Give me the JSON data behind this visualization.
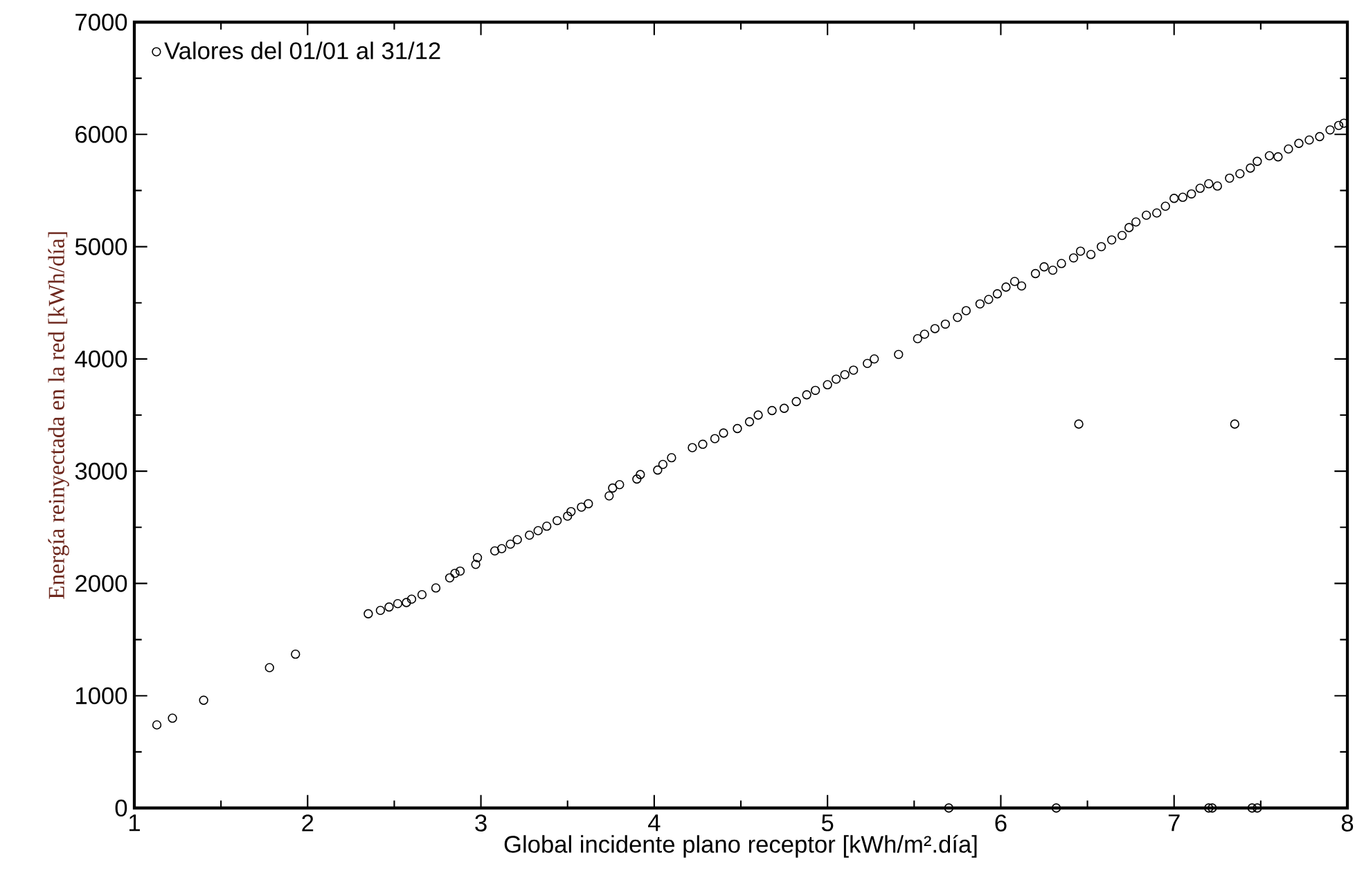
{
  "chart_data": {
    "type": "scatter",
    "xlabel": "Global incidente plano receptor [kWh/m².día]",
    "ylabel": "Energía reinyectada en la red [kWh/día]",
    "xlim": [
      1,
      8
    ],
    "ylim": [
      0,
      7000
    ],
    "xticks": [
      1,
      2,
      3,
      4,
      5,
      6,
      7,
      8
    ],
    "yticks": [
      0,
      1000,
      2000,
      3000,
      4000,
      5000,
      6000,
      7000
    ],
    "grid": false,
    "legend": "top left",
    "marker": "circle",
    "series": [
      {
        "name": "Valores del 01/01 al 31/12",
        "color": "#000000",
        "x": [
          1.13,
          1.22,
          1.4,
          1.78,
          1.93,
          2.35,
          2.42,
          2.47,
          2.52,
          2.57,
          2.6,
          2.66,
          2.74,
          2.82,
          2.85,
          2.88,
          2.97,
          2.98,
          3.08,
          3.12,
          3.17,
          3.21,
          3.28,
          3.33,
          3.38,
          3.44,
          3.5,
          3.52,
          3.58,
          3.62,
          3.74,
          3.76,
          3.8,
          3.9,
          3.92,
          4.02,
          4.05,
          4.1,
          4.22,
          4.28,
          4.35,
          4.4,
          4.48,
          4.55,
          4.6,
          4.68,
          4.75,
          4.82,
          4.88,
          4.93,
          5.0,
          5.05,
          5.1,
          5.15,
          5.23,
          5.27,
          5.41,
          5.52,
          5.56,
          5.62,
          5.68,
          5.75,
          5.8,
          5.88,
          5.93,
          5.98,
          6.03,
          6.08,
          6.12,
          6.2,
          6.25,
          6.3,
          6.35,
          6.42,
          6.46,
          6.52,
          6.58,
          6.64,
          6.7,
          6.74,
          6.78,
          6.84,
          6.9,
          6.95,
          7.0,
          7.05,
          7.1,
          7.15,
          7.2,
          7.25,
          7.32,
          7.38,
          7.44,
          7.48,
          7.55,
          7.6,
          7.66,
          7.72,
          7.78,
          7.84,
          7.9,
          7.95,
          7.98,
          6.45,
          7.35,
          5.7,
          6.32,
          7.2,
          7.22,
          7.45,
          7.48
        ],
        "values": [
          740,
          800,
          960,
          1250,
          1370,
          1730,
          1760,
          1790,
          1820,
          1830,
          1860,
          1900,
          1960,
          2050,
          2090,
          2110,
          2170,
          2230,
          2290,
          2310,
          2350,
          2390,
          2430,
          2470,
          2510,
          2560,
          2600,
          2640,
          2680,
          2710,
          2780,
          2850,
          2880,
          2930,
          2970,
          3010,
          3060,
          3120,
          3210,
          3240,
          3290,
          3340,
          3380,
          3440,
          3500,
          3540,
          3560,
          3620,
          3680,
          3720,
          3770,
          3820,
          3860,
          3900,
          3960,
          4000,
          4040,
          4180,
          4220,
          4270,
          4310,
          4370,
          4430,
          4490,
          4530,
          4580,
          4640,
          4690,
          4650,
          4760,
          4820,
          4790,
          4850,
          4900,
          4960,
          4930,
          5000,
          5060,
          5100,
          5170,
          5220,
          5280,
          5300,
          5360,
          5430,
          5440,
          5470,
          5520,
          5560,
          5540,
          5610,
          5650,
          5700,
          5760,
          5810,
          5800,
          5870,
          5920,
          5950,
          5980,
          6040,
          6080,
          6100,
          3420,
          3420,
          0,
          0,
          0,
          0,
          0,
          0
        ]
      }
    ]
  }
}
